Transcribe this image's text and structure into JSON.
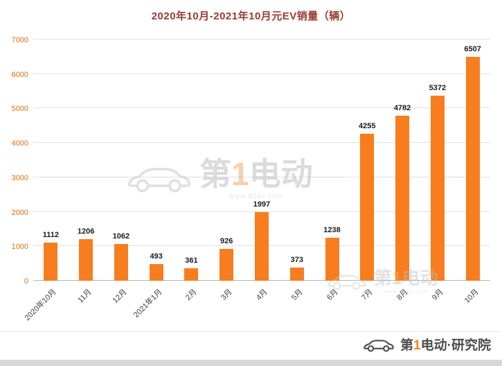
{
  "chart_data": {
    "type": "bar",
    "title": "2020年10月-2021年10月元EV销量（辆）",
    "categories": [
      "2020年10月",
      "11月",
      "12月",
      "2021年1月",
      "2月",
      "3月",
      "4月",
      "5月",
      "6月",
      "7月",
      "8月",
      "9月",
      "10月"
    ],
    "values": [
      1112,
      1206,
      1062,
      493,
      361,
      926,
      1997,
      373,
      1238,
      4255,
      4782,
      5372,
      6507
    ],
    "xlabel": "",
    "ylabel": "",
    "ylim": [
      0,
      7000
    ],
    "yticks": [
      0,
      1000,
      2000,
      3000,
      4000,
      5000,
      6000,
      7000
    ],
    "grid": true,
    "legend": false,
    "bar_color": "#F87D1E",
    "title_color": "#9E3A32",
    "ytick_color": "#E36C0A"
  },
  "watermark": {
    "part1": "第",
    "one": "1",
    "part2": "电动",
    "url": "www.d1ev.com"
  },
  "footer": {
    "part1": "第",
    "one": "1",
    "part2": "电动·研究院"
  }
}
